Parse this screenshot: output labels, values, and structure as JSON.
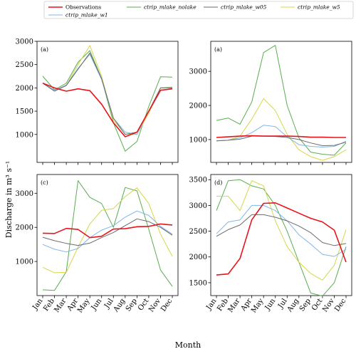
{
  "chart_data": {
    "type": "line",
    "ylabel": "Discharge in m³ s⁻¹",
    "xlabel": "Month",
    "legend_placement": "top",
    "legend": [
      {
        "name": "Observations",
        "color": "#e8141b"
      },
      {
        "name": "ctrip_mlake_nolake",
        "color": "#59ad4f"
      },
      {
        "name": "ctrip_mlake_w05",
        "color": "#6b6b6b"
      },
      {
        "name": "ctrip_mlake_w5",
        "color": "#d6d64a"
      },
      {
        "name": "ctrip_mlake_w1",
        "color": "#7fb6e6"
      }
    ],
    "categories": [
      "Jan",
      "Feb",
      "Mar",
      "Apr",
      "May",
      "Jun",
      "Jul",
      "Aug",
      "Sep",
      "Oct",
      "Nov",
      "Dec"
    ],
    "panels": [
      {
        "label": "(a)",
        "ylim": [
          400,
          3000
        ],
        "yticks": [
          1000,
          1500,
          2000,
          2500,
          3000
        ],
        "show_xticklabels": false,
        "series": {
          "Observations": [
            2100,
            2000,
            1930,
            1980,
            1940,
            1650,
            1250,
            950,
            1050,
            1500,
            1950,
            1980
          ],
          "ctrip_mlake_nolake": [
            2250,
            1960,
            2100,
            2550,
            2800,
            2200,
            1250,
            640,
            850,
            1600,
            2240,
            2230
          ],
          "ctrip_mlake_w05": [
            2100,
            1930,
            2050,
            2400,
            2750,
            2200,
            1350,
            1000,
            1050,
            1500,
            2000,
            2000
          ],
          "ctrip_mlake_w5": [
            2100,
            1950,
            2050,
            2500,
            2910,
            2250,
            1300,
            1010,
            1000,
            1450,
            2000,
            2020
          ],
          "ctrip_mlake_w1": [
            2100,
            1950,
            2060,
            2420,
            2720,
            2180,
            1350,
            1050,
            1000,
            1500,
            2000,
            2010
          ]
        }
      },
      {
        "label": "(a)",
        "ylim": [
          330,
          3880
        ],
        "yticks": [
          1000,
          2000,
          3000
        ],
        "show_xticklabels": false,
        "series": {
          "Observations": [
            1060,
            1080,
            1100,
            1110,
            1100,
            1100,
            1100,
            1090,
            1070,
            1070,
            1060,
            1060
          ],
          "ctrip_mlake_nolake": [
            1560,
            1630,
            1450,
            2100,
            3550,
            3760,
            2000,
            1050,
            630,
            570,
            540,
            900
          ],
          "ctrip_mlake_w05": [
            960,
            980,
            1010,
            1100,
            1100,
            1090,
            1060,
            1000,
            900,
            820,
            830,
            920
          ],
          "ctrip_mlake_w5": [
            960,
            980,
            1100,
            1600,
            2200,
            1850,
            1150,
            700,
            500,
            390,
            500,
            700
          ],
          "ctrip_mlake_w1": [
            960,
            980,
            1050,
            1200,
            1420,
            1380,
            1080,
            850,
            800,
            780,
            800,
            950
          ]
        }
      },
      {
        "label": "(c)",
        "ylim": [
          0,
          3550
        ],
        "yticks": [
          1000,
          2000,
          3000
        ],
        "show_xticklabels": true,
        "series": {
          "Observations": [
            1830,
            1820,
            1970,
            1940,
            1700,
            1740,
            1950,
            1960,
            2020,
            2030,
            2100,
            2070
          ],
          "ctrip_mlake_nolake": [
            170,
            150,
            700,
            3370,
            2880,
            2700,
            2000,
            3170,
            3070,
            1950,
            750,
            270
          ],
          "ctrip_mlake_w05": [
            1710,
            1610,
            1530,
            1470,
            1540,
            1700,
            1850,
            2050,
            2250,
            2170,
            2000,
            1770
          ],
          "ctrip_mlake_w5": [
            830,
            670,
            680,
            1420,
            2100,
            2500,
            2550,
            2900,
            3160,
            2700,
            1800,
            1150
          ],
          "ctrip_mlake_w1": [
            1500,
            1360,
            1280,
            1380,
            1700,
            1920,
            2050,
            2300,
            2480,
            2350,
            2030,
            1800
          ]
        }
      },
      {
        "label": "(d)",
        "ylim": [
          1250,
          3600
        ],
        "yticks": [
          1500,
          2000,
          2500,
          3000,
          3500
        ],
        "show_xticklabels": true,
        "series": {
          "Observations": [
            1650,
            1670,
            1970,
            2720,
            3040,
            3050,
            2950,
            2850,
            2750,
            2680,
            2520,
            1900
          ],
          "ctrip_mlake_nolake": [
            2900,
            3480,
            3500,
            3380,
            3320,
            3000,
            2500,
            1900,
            1300,
            1240,
            1500,
            2200
          ],
          "ctrip_mlake_w05": [
            2400,
            2530,
            2620,
            2820,
            2820,
            2770,
            2700,
            2600,
            2470,
            2280,
            2220,
            2260
          ],
          "ctrip_mlake_w5": [
            3180,
            3180,
            2900,
            3480,
            3380,
            2700,
            2200,
            1900,
            1680,
            1550,
            1840,
            2530
          ],
          "ctrip_mlake_w1": [
            2450,
            2680,
            2720,
            3000,
            3000,
            2900,
            2700,
            2430,
            2250,
            2050,
            2010,
            2150
          ]
        }
      }
    ]
  }
}
